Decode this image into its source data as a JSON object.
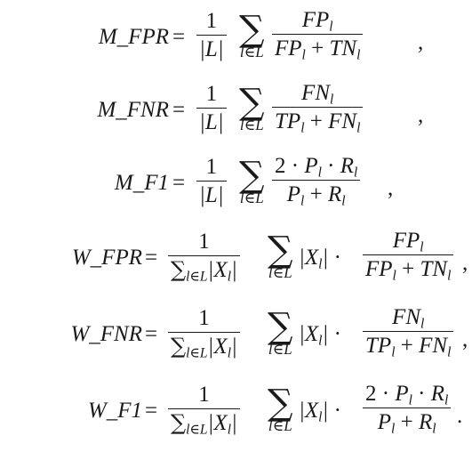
{
  "equations": [
    {
      "lhs": "M_FPR",
      "prefix": "M",
      "suffix": "FPR",
      "type": "macro",
      "num": "FP",
      "den_a": "FP",
      "den_b": "TN",
      "end": ","
    },
    {
      "lhs": "M_FNR",
      "prefix": "M",
      "suffix": "FNR",
      "type": "macro",
      "num": "FN",
      "den_a": "TP",
      "den_b": "FN",
      "end": ","
    },
    {
      "lhs": "M_F1",
      "prefix": "M",
      "suffix": "F1",
      "type": "macro_f1",
      "end": ","
    },
    {
      "lhs": "W_FPR",
      "prefix": "W",
      "suffix": "FPR",
      "type": "weighted",
      "num": "FP",
      "den_a": "FP",
      "den_b": "TN",
      "end": ","
    },
    {
      "lhs": "W_FNR",
      "prefix": "W",
      "suffix": "FNR",
      "type": "weighted",
      "num": "FN",
      "den_a": "TP",
      "den_b": "FN",
      "end": ","
    },
    {
      "lhs": "W_F1",
      "prefix": "W",
      "suffix": "F1",
      "type": "weighted_f1",
      "end": "."
    }
  ],
  "symbols": {
    "equals": "=",
    "one": "1",
    "two": "2",
    "cdot": "·",
    "plus": "+",
    "sum": "∑",
    "label_set": "L",
    "sum_index": "l∈L",
    "sub": "l",
    "set_size": "|L|",
    "weight": "|X",
    "weight_close": "|",
    "precision": "P",
    "recall": "R",
    "underscore": "_"
  }
}
